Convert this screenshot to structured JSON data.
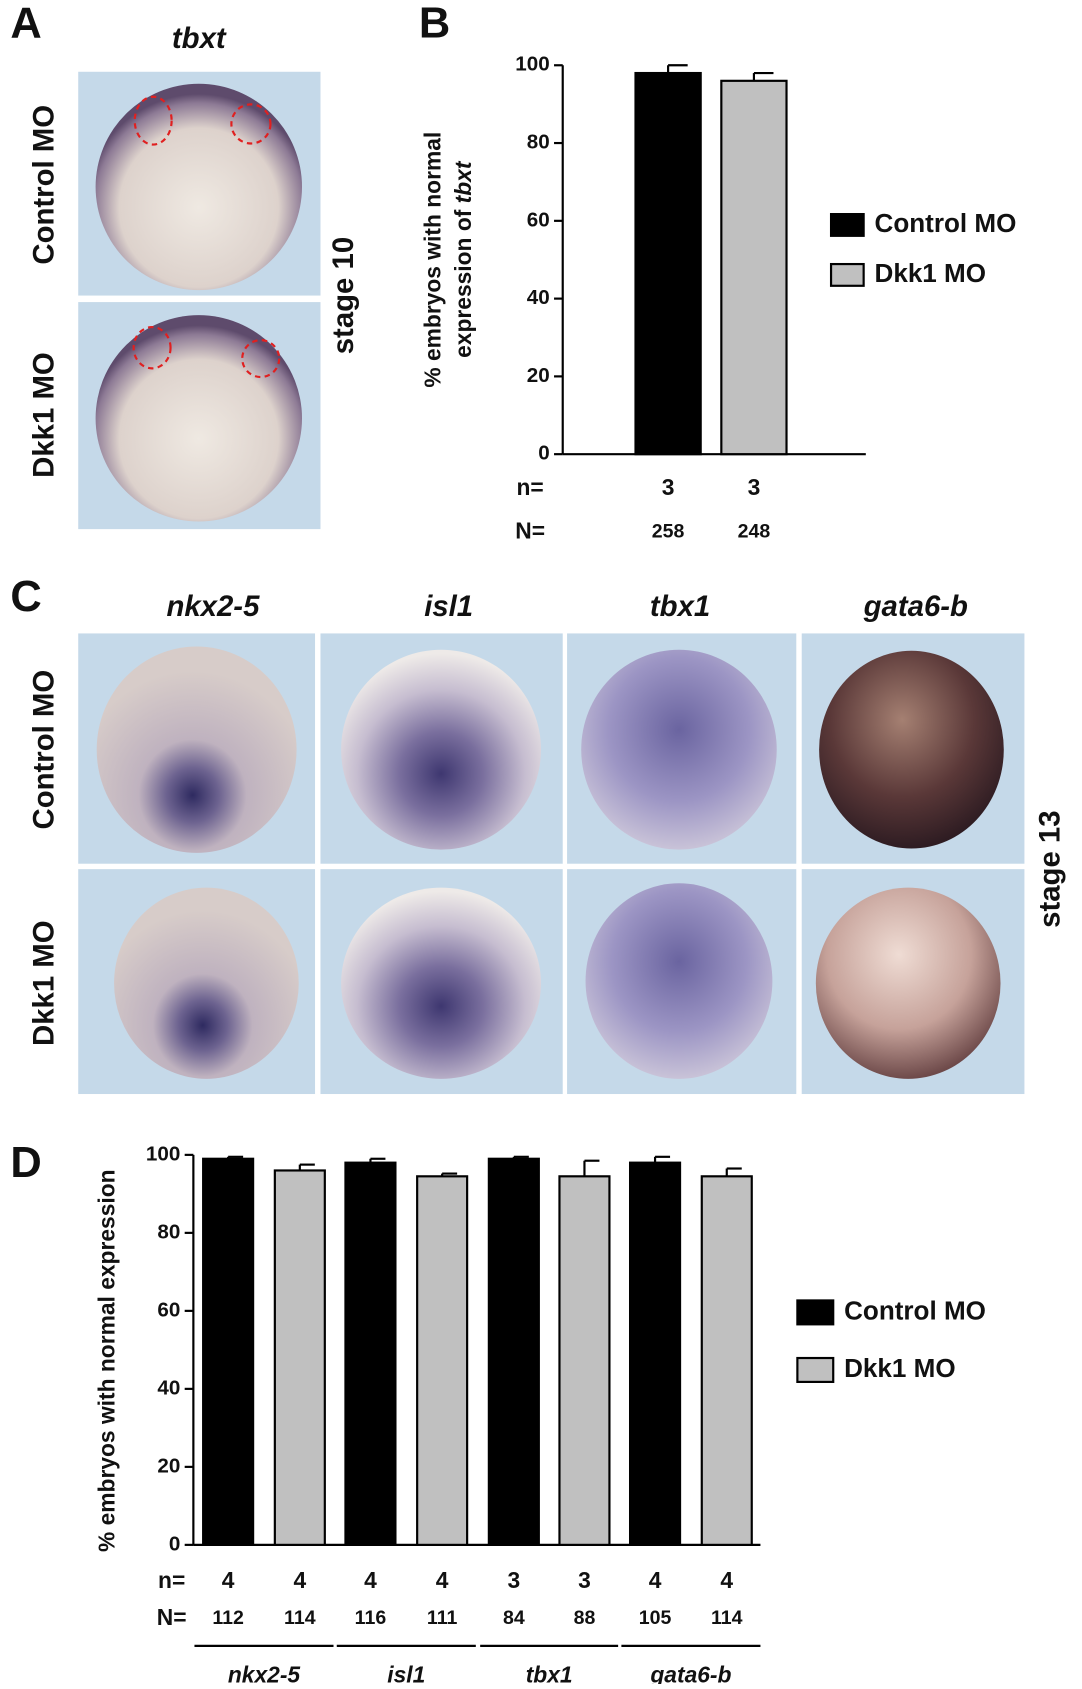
{
  "figure": {
    "panel_labels": [
      "A",
      "B",
      "C",
      "D"
    ],
    "panel_a": {
      "gene": "tbxt",
      "rows": [
        "Control MO",
        "Dkk1 MO"
      ],
      "stage": "stage 10"
    },
    "panel_c": {
      "genes": [
        "nkx2-5",
        "isl1",
        "tbx1",
        "gata6-b"
      ],
      "rows": [
        "Control MO",
        "Dkk1 MO"
      ],
      "stage": "stage 13"
    }
  },
  "chart_data": [
    {
      "type": "bar",
      "ylabel_lines": [
        "% embryos with normal",
        "expression of "
      ],
      "ylabel_italic": "tbxt",
      "categories": [
        null
      ],
      "ylim": [
        0,
        100
      ],
      "yticks": [
        0,
        20,
        40,
        60,
        80,
        100
      ],
      "n_label": "n=",
      "N_label": "N=",
      "series": [
        {
          "name": "Control MO",
          "color": "#000000",
          "values": [
            98
          ],
          "errors": [
            2
          ],
          "n": [
            3
          ],
          "N": [
            258
          ]
        },
        {
          "name": "Dkk1 MO",
          "color": "#c0c0c0",
          "values": [
            96
          ],
          "errors": [
            2
          ],
          "n": [
            3
          ],
          "N": [
            248
          ]
        }
      ]
    },
    {
      "type": "bar",
      "ylabel": "% embryos with normal expression",
      "categories": [
        "nkx2-5",
        "isl1",
        "tbx1",
        "gata6-b"
      ],
      "ylim": [
        0,
        100
      ],
      "yticks": [
        0,
        20,
        40,
        60,
        80,
        100
      ],
      "n_label": "n=",
      "N_label": "N=",
      "series": [
        {
          "name": "Control MO",
          "color": "#000000",
          "values": [
            99,
            98,
            99,
            98
          ],
          "errors": [
            0.5,
            1,
            0.5,
            1.5
          ],
          "n": [
            4,
            4,
            3,
            4
          ],
          "N": [
            112,
            116,
            84,
            105
          ]
        },
        {
          "name": "Dkk1 MO",
          "color": "#c0c0c0",
          "values": [
            96,
            94.5,
            94.5,
            94.5
          ],
          "errors": [
            1.5,
            0.7,
            4,
            2
          ],
          "n": [
            4,
            4,
            3,
            4
          ],
          "N": [
            114,
            111,
            88,
            114
          ]
        }
      ]
    }
  ]
}
